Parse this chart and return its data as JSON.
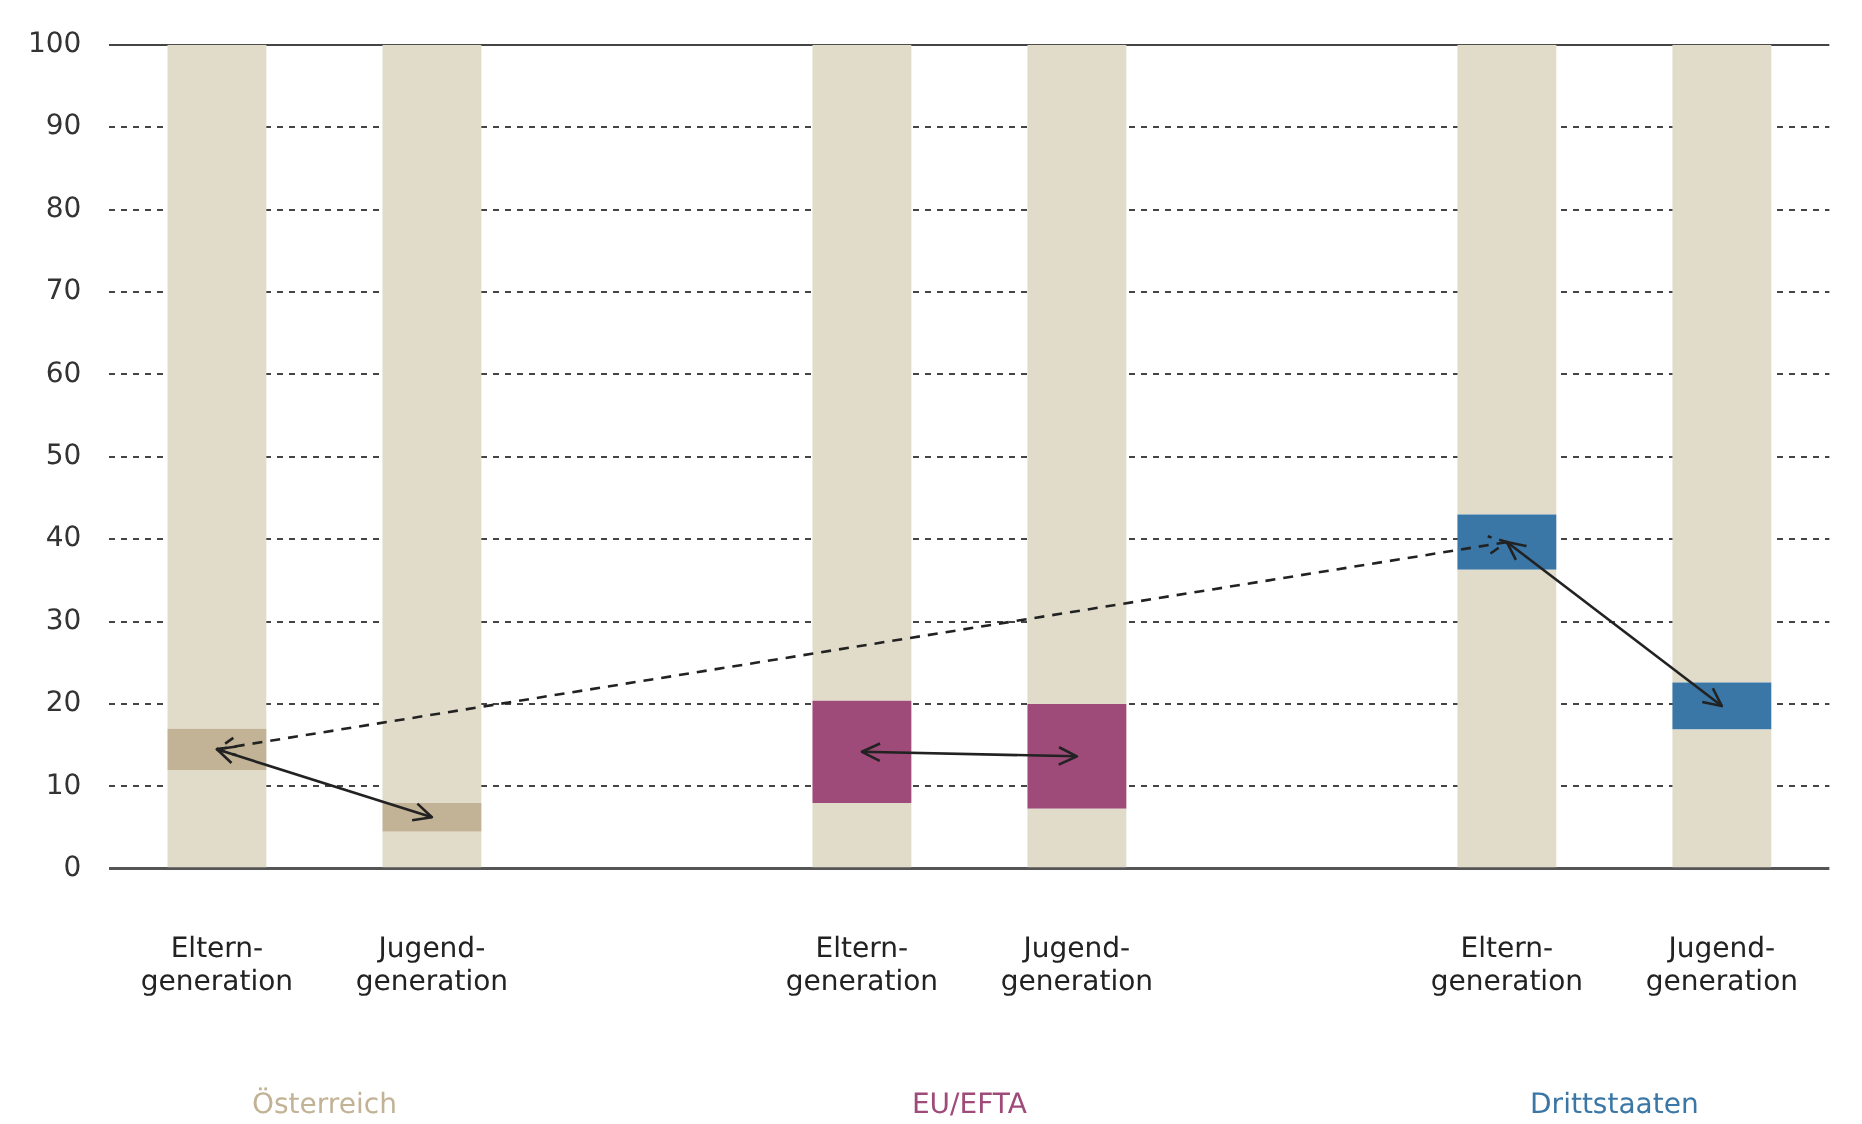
{
  "chart_data": {
    "type": "bar",
    "stacked": true,
    "categories": [
      "Eltern-\ngeneration",
      "Jugend-\ngeneration",
      null,
      "Eltern-\ngeneration",
      "Jugend-\ngeneration",
      null,
      "Eltern-\ngeneration",
      "Jugend-\ngeneration"
    ],
    "series": [
      {
        "color": "#e1dcca",
        "values": [
          12,
          4.5,
          null,
          8,
          7.3,
          null,
          36.3,
          16.9
        ]
      },
      {
        "colors": [
          "#c2b396",
          "#c2b396",
          null,
          "#9e4b7a",
          "#9e4b7a",
          null,
          "#3a77a6",
          "#3a77a6"
        ],
        "values": [
          5,
          3.5,
          null,
          12.4,
          12.7,
          null,
          6.7,
          5.7
        ]
      },
      {
        "color": "#e1dcca",
        "values": [
          83,
          92,
          null,
          79.6,
          80,
          null,
          57,
          77.4
        ]
      }
    ],
    "ylim": [
      0,
      100
    ],
    "yticks": [
      0,
      10,
      20,
      30,
      40,
      50,
      60,
      70,
      80,
      90,
      100
    ],
    "grid": "y",
    "legend": false,
    "annotations": [
      "Österreich",
      "EU/EFTA",
      "Drittstaaten"
    ]
  }
}
